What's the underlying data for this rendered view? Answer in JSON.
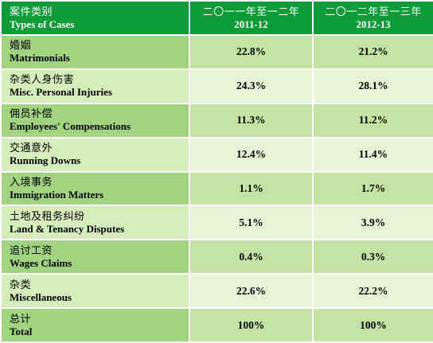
{
  "header": {
    "col1_zh": "案件类别",
    "col1_en": "Types of Cases",
    "col2_zh": "二〇一一年至一二年",
    "col2_en": "2011-12",
    "col3_zh": "二〇一二年至一三年",
    "col3_en": "2012-13"
  },
  "rows": [
    {
      "zh": "婚姻",
      "en": "Matrimonials",
      "v1": "22.8%",
      "v2": "21.2%"
    },
    {
      "zh": "杂类人身伤害",
      "en": "Misc. Personal Injuries",
      "v1": "24.3%",
      "v2": "28.1%"
    },
    {
      "zh": "佣员补偿",
      "en": "Employees' Compensations",
      "v1": "11.3%",
      "v2": "11.2%"
    },
    {
      "zh": "交通意外",
      "en": "Running Downs",
      "v1": "12.4%",
      "v2": "11.4%"
    },
    {
      "zh": "入境事务",
      "en": "Immigration Matters",
      "v1": "1.1%",
      "v2": "1.7%"
    },
    {
      "zh": "土地及租务纠纷",
      "en": "Land & Tenancy Disputes",
      "v1": "5.1%",
      "v2": "3.9%"
    },
    {
      "zh": "追讨工资",
      "en": "Wages Claims",
      "v1": "0.4%",
      "v2": "0.3%"
    },
    {
      "zh": "杂类",
      "en": "Miscellaneous",
      "v1": "22.6%",
      "v2": "22.2%"
    },
    {
      "zh": "总计",
      "en": "Total",
      "v1": "100%",
      "v2": "100%"
    }
  ],
  "colors": {
    "header_bg": "#0f9b38",
    "row_dark": "#a0d480",
    "row_light": "#d5edba"
  }
}
